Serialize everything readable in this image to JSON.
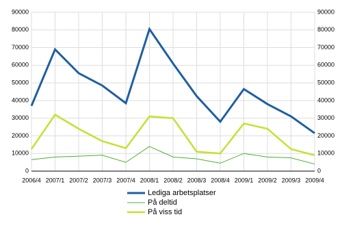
{
  "chart_data": {
    "type": "line",
    "categories": [
      "2006/4",
      "2007/1",
      "2007/2",
      "2007/3",
      "2007/4",
      "2008/1",
      "2008/2",
      "2008/3",
      "2008/4",
      "2009/1",
      "2009/2",
      "2009/3",
      "2009/4"
    ],
    "series": [
      {
        "name": "Lediga arbetsplatser",
        "color": "#1f5fa0",
        "values": [
          37000,
          69000,
          55500,
          48500,
          38500,
          80500,
          61000,
          42500,
          28000,
          46500,
          38000,
          31000,
          21500
        ]
      },
      {
        "name": "På deltid",
        "color": "#4caf2f",
        "values": [
          6500,
          8000,
          8500,
          9000,
          5000,
          14000,
          8000,
          7000,
          4500,
          10000,
          8000,
          7500,
          4000
        ]
      },
      {
        "name": "På viss tid",
        "color": "#c6e030",
        "values": [
          12500,
          32000,
          24000,
          17000,
          13000,
          31000,
          30000,
          11000,
          10000,
          27000,
          24000,
          12500,
          9000
        ]
      }
    ],
    "ylim": [
      0,
      90000
    ],
    "yticks": [
      0,
      10000,
      20000,
      30000,
      40000,
      50000,
      60000,
      70000,
      80000,
      90000
    ],
    "grid": true
  }
}
